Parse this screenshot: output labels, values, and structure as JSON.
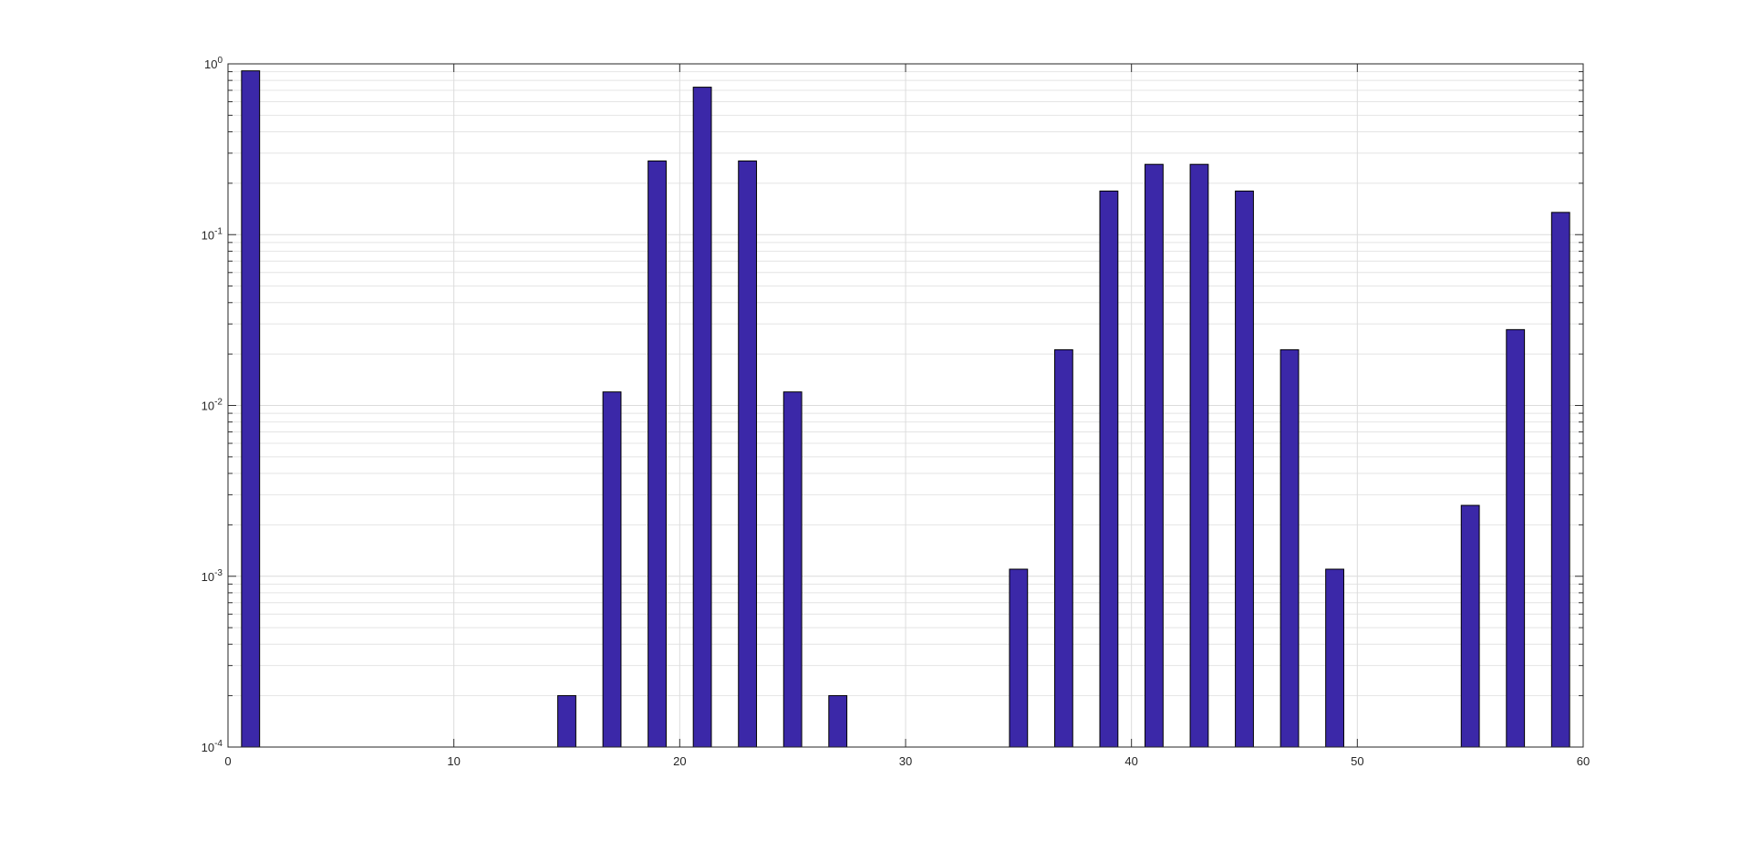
{
  "chart_data": {
    "type": "bar",
    "x": [
      1,
      15,
      17,
      19,
      21,
      23,
      25,
      27,
      35,
      37,
      39,
      41,
      43,
      45,
      47,
      49,
      55,
      57,
      59
    ],
    "values": [
      0.91,
      0.0002,
      0.012,
      0.27,
      0.73,
      0.27,
      0.012,
      0.0002,
      0.0011,
      0.0212,
      0.18,
      0.258,
      0.258,
      0.18,
      0.0212,
      0.0011,
      0.0026,
      0.0278,
      0.135
    ],
    "color": "#3b28a8",
    "xlim": [
      0,
      60
    ],
    "xticks": [
      0,
      10,
      20,
      30,
      40,
      50,
      60
    ],
    "ylim": [
      0.0001,
      1
    ],
    "log_y": true,
    "yticks": [
      {
        "value": 0.0001,
        "label": "10^-4"
      },
      {
        "value": 0.001,
        "label": "10^-3"
      },
      {
        "value": 0.01,
        "label": "10^-2"
      },
      {
        "value": 0.1,
        "label": "10^-1"
      },
      {
        "value": 1,
        "label": "10^0"
      }
    ],
    "grid": true,
    "minor_grid": true
  }
}
